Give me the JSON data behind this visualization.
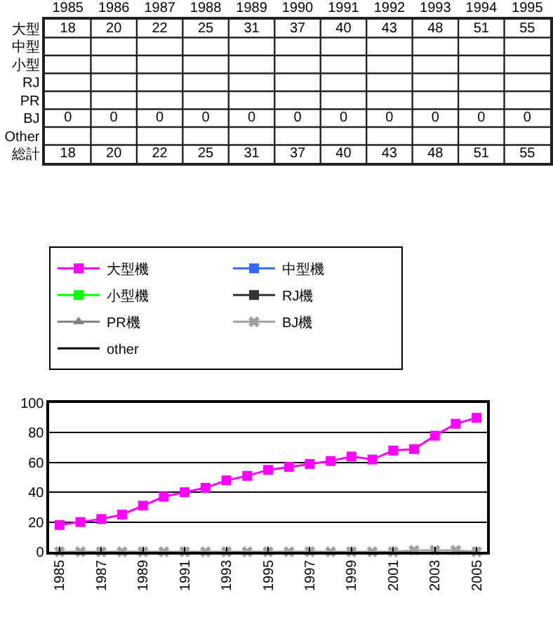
{
  "chart_data": [
    {
      "type": "heatmap",
      "grid": true,
      "data_labels": true,
      "categories": [
        "1985",
        "1986",
        "1987",
        "1988",
        "1989",
        "1990",
        "1991",
        "1992",
        "1993",
        "1994",
        "1995"
      ],
      "y_categories": [
        "大型",
        "中型",
        "小型",
        "RJ",
        "PR",
        "BJ",
        "Other",
        "総計"
      ],
      "cells": [
        [
          18,
          20,
          22,
          25,
          31,
          37,
          40,
          43,
          48,
          51,
          55
        ],
        [
          null,
          null,
          null,
          null,
          null,
          null,
          null,
          null,
          null,
          null,
          null
        ],
        [
          null,
          null,
          null,
          null,
          null,
          null,
          null,
          null,
          null,
          null,
          null
        ],
        [
          null,
          null,
          null,
          null,
          null,
          null,
          null,
          null,
          null,
          null,
          null
        ],
        [
          null,
          null,
          null,
          null,
          null,
          null,
          null,
          null,
          null,
          null,
          null
        ],
        [
          0,
          0,
          0,
          0,
          0,
          0,
          0,
          0,
          0,
          0,
          0
        ],
        [
          null,
          null,
          null,
          null,
          null,
          null,
          null,
          null,
          null,
          null,
          null
        ],
        [
          18,
          20,
          22,
          25,
          31,
          37,
          40,
          43,
          48,
          51,
          55
        ]
      ]
    },
    {
      "type": "line",
      "categories": [
        "1985",
        null,
        "1987",
        null,
        "1989",
        null,
        "1991",
        null,
        "1993",
        null,
        "1995",
        null,
        "1997",
        null,
        "1999",
        null,
        "2001",
        null,
        "2003",
        null,
        "2005"
      ],
      "ylim": [
        0,
        100
      ],
      "yticks": [
        0,
        20,
        40,
        60,
        80,
        100
      ],
      "grid": "y",
      "legend": "top",
      "series": [
        {
          "name": "大型機",
          "color": "#ff00ff",
          "marker": "square",
          "values": [
            18,
            20,
            22,
            25,
            31,
            37,
            40,
            43,
            48,
            51,
            55,
            57,
            59,
            61,
            64,
            62,
            68,
            69,
            78,
            86,
            90
          ]
        },
        {
          "name": "中型機",
          "color": "#3366ff",
          "marker": "square",
          "values": [
            null,
            null,
            null,
            null,
            null,
            null,
            null,
            null,
            null,
            null,
            null,
            null,
            null,
            null,
            null,
            null,
            null,
            null,
            null,
            null,
            null
          ]
        },
        {
          "name": "小型機",
          "color": "#00ff00",
          "marker": "square",
          "values": [
            null,
            null,
            null,
            null,
            null,
            null,
            null,
            null,
            null,
            null,
            null,
            null,
            null,
            null,
            null,
            null,
            null,
            null,
            null,
            null,
            null
          ]
        },
        {
          "name": "RJ機",
          "color": "#333333",
          "marker": "square",
          "values": [
            null,
            null,
            null,
            null,
            null,
            null,
            null,
            null,
            null,
            null,
            null,
            null,
            null,
            null,
            null,
            null,
            null,
            null,
            null,
            null,
            null
          ]
        },
        {
          "name": "PR機",
          "color": "#808080",
          "marker": "triangle",
          "values": [
            null,
            null,
            null,
            null,
            null,
            null,
            null,
            null,
            null,
            null,
            null,
            null,
            null,
            null,
            null,
            null,
            null,
            null,
            null,
            null,
            null
          ]
        },
        {
          "name": "BJ機",
          "color": "#a0a0a0",
          "marker": "cross",
          "values": [
            0,
            0,
            0,
            0,
            0,
            0,
            0,
            0,
            0,
            0,
            0,
            0,
            0,
            0,
            0,
            0,
            0,
            1,
            1,
            1,
            0
          ]
        },
        {
          "name": "other",
          "color": "#000000",
          "marker": "none",
          "values": [
            null,
            null,
            null,
            null,
            null,
            null,
            null,
            null,
            null,
            null,
            null,
            null,
            null,
            null,
            null,
            null,
            null,
            null,
            null,
            null,
            null
          ]
        }
      ]
    }
  ]
}
